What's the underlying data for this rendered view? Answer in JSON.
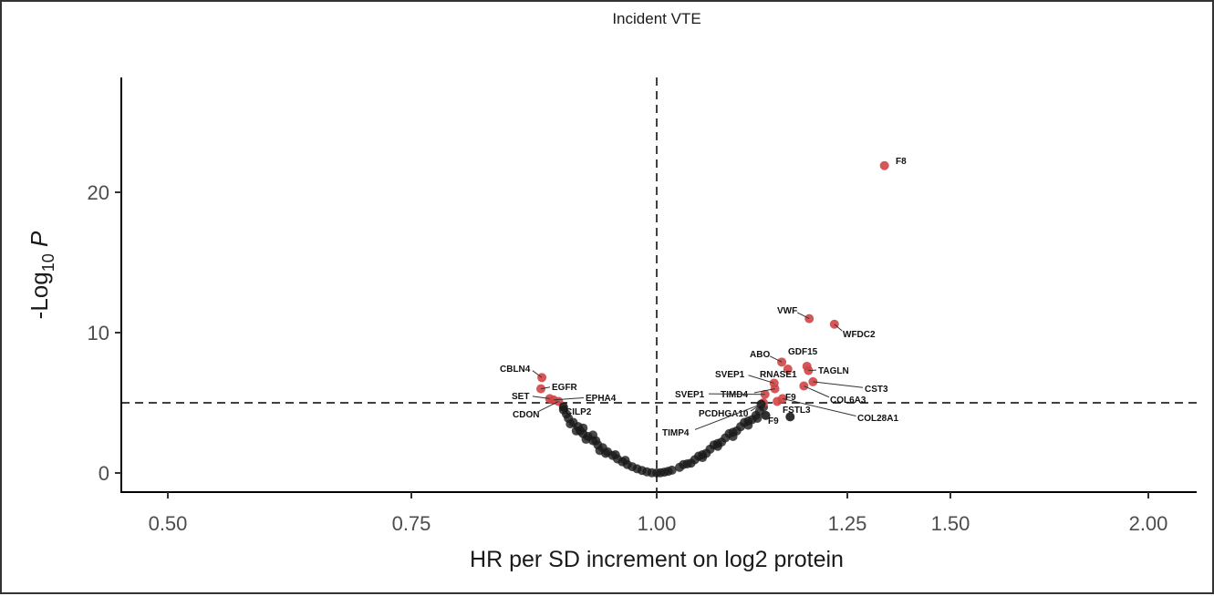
{
  "chart_data": {
    "type": "scatter",
    "title": "Incident VTE",
    "xlabel": "HR per SD increment on log2 protein",
    "ylabel": "-Log10 P",
    "x_ticks": [
      0.5,
      0.75,
      1.0,
      1.25,
      1.5,
      2.0
    ],
    "x_tick_labels": [
      "0.50",
      "0.75",
      "1.00",
      "1.25",
      "1.50",
      "2.00"
    ],
    "y_ticks": [
      0,
      10,
      20
    ],
    "y_tick_labels": [
      "0",
      "10",
      "20"
    ],
    "reference_lines": {
      "vertical_hr": 1.0,
      "horizontal_neglog10p": 5
    },
    "grid": false,
    "colors": {
      "significant": "#d04545",
      "nonsignificant": "#1a1a1a"
    },
    "labeled_points": [
      {
        "name": "F8",
        "hr": 1.34,
        "p": 21.9,
        "sig": true
      },
      {
        "name": "VWF",
        "hr": 1.2,
        "p": 11.0,
        "sig": true
      },
      {
        "name": "WFDC2",
        "hr": 1.233,
        "p": 10.6,
        "sig": true
      },
      {
        "name": "ABO",
        "hr": 1.164,
        "p": 7.9,
        "sig": true
      },
      {
        "name": "GDF15",
        "hr": 1.197,
        "p": 7.6,
        "sig": true
      },
      {
        "name": "TAGLN",
        "hr": 1.199,
        "p": 7.3,
        "sig": true
      },
      {
        "name": "RNASE1",
        "hr": 1.172,
        "p": 7.4,
        "sig": true
      },
      {
        "name": "CST3",
        "hr": 1.205,
        "p": 6.5,
        "sig": true
      },
      {
        "name": "COL6A3",
        "hr": 1.193,
        "p": 6.2,
        "sig": true
      },
      {
        "name": "SVEP1",
        "hr": 1.154,
        "p": 6.4,
        "sig": true
      },
      {
        "name": "TIMD4",
        "hr": 1.155,
        "p": 6.0,
        "sig": true
      },
      {
        "name": "SVEP1",
        "hr": 1.142,
        "p": 5.6,
        "sig": true
      },
      {
        "name": "F9",
        "hr": 1.158,
        "p": 5.1,
        "sig": true
      },
      {
        "name": "COL28A1",
        "hr": 1.165,
        "p": 5.3,
        "sig": true
      },
      {
        "name": "PCDHGA10",
        "hr": 1.14,
        "p": 5.0,
        "sig": true
      },
      {
        "name": "TIMP4",
        "hr": 1.137,
        "p": 4.9,
        "sig": false
      },
      {
        "name": "FSTL3",
        "hr": 1.175,
        "p": 4.0,
        "sig": false
      },
      {
        "name": "F9",
        "hr": 1.143,
        "p": 4.1,
        "sig": false
      },
      {
        "name": "CBLN4",
        "hr": 0.883,
        "p": 6.8,
        "sig": true
      },
      {
        "name": "EGFR",
        "hr": 0.882,
        "p": 6.0,
        "sig": true
      },
      {
        "name": "SET",
        "hr": 0.891,
        "p": 5.3,
        "sig": true
      },
      {
        "name": "EPHA4",
        "hr": 0.895,
        "p": 5.2,
        "sig": true
      },
      {
        "name": "CDON",
        "hr": 0.9,
        "p": 5.1,
        "sig": true
      },
      {
        "name": "CILP2",
        "hr": 0.905,
        "p": 4.7,
        "sig": false
      }
    ],
    "other_points": [
      [
        0.905,
        4.5
      ],
      [
        0.908,
        4.2
      ],
      [
        0.91,
        3.9
      ],
      [
        0.915,
        3.6
      ],
      [
        0.92,
        3.3
      ],
      [
        0.922,
        3.0
      ],
      [
        0.925,
        2.8
      ],
      [
        0.93,
        2.6
      ],
      [
        0.935,
        2.3
      ],
      [
        0.94,
        2.0
      ],
      [
        0.945,
        1.8
      ],
      [
        0.95,
        1.5
      ],
      [
        0.955,
        1.25
      ],
      [
        0.96,
        1.0
      ],
      [
        0.965,
        0.8
      ],
      [
        0.97,
        0.6
      ],
      [
        0.975,
        0.45
      ],
      [
        0.98,
        0.3
      ],
      [
        0.985,
        0.18
      ],
      [
        0.99,
        0.08
      ],
      [
        0.995,
        0.02
      ],
      [
        0.912,
        3.5
      ],
      [
        0.918,
        3.0
      ],
      [
        0.928,
        2.4
      ],
      [
        0.938,
        2.3
      ],
      [
        0.948,
        1.4
      ],
      [
        0.958,
        1.3
      ],
      [
        0.968,
        0.9
      ],
      [
        0.942,
        1.6
      ],
      [
        0.925,
        3.2
      ],
      [
        0.935,
        2.7
      ],
      [
        1.0,
        0.0
      ],
      [
        1.005,
        0.02
      ],
      [
        1.01,
        0.06
      ],
      [
        1.015,
        0.12
      ],
      [
        1.02,
        0.2
      ],
      [
        1.03,
        0.4
      ],
      [
        1.04,
        0.65
      ],
      [
        1.05,
        0.95
      ],
      [
        1.06,
        1.3
      ],
      [
        1.07,
        1.7
      ],
      [
        1.08,
        2.1
      ],
      [
        1.09,
        2.5
      ],
      [
        1.1,
        2.9
      ],
      [
        1.11,
        3.3
      ],
      [
        1.12,
        3.7
      ],
      [
        1.13,
        4.1
      ],
      [
        1.135,
        4.4
      ],
      [
        1.14,
        4.7
      ],
      [
        1.035,
        0.6
      ],
      [
        1.045,
        0.7
      ],
      [
        1.055,
        1.2
      ],
      [
        1.065,
        1.4
      ],
      [
        1.075,
        2.0
      ],
      [
        1.085,
        2.2
      ],
      [
        1.095,
        2.8
      ],
      [
        1.105,
        3.0
      ],
      [
        1.115,
        3.6
      ],
      [
        1.125,
        3.8
      ],
      [
        1.132,
        3.9
      ],
      [
        1.12,
        3.4
      ],
      [
        1.1,
        2.6
      ],
      [
        1.08,
        1.9
      ],
      [
        1.06,
        1.1
      ]
    ]
  }
}
